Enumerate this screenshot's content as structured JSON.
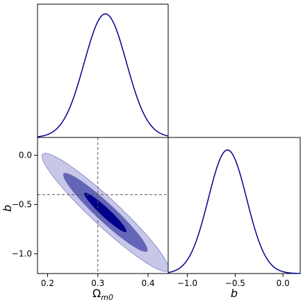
{
  "chart_data": {
    "type": "corner",
    "parameters": [
      {
        "label": "Ω",
        "subscript": "m0",
        "range": [
          0.18,
          0.44
        ],
        "ticks": [
          0.2,
          0.3,
          0.4
        ]
      },
      {
        "label": "b",
        "range": [
          -1.2,
          0.18
        ],
        "ticks": [
          -1.0,
          -0.5,
          0.0
        ]
      }
    ],
    "marginals": [
      {
        "parameter": 0,
        "mean": 0.315,
        "std": 0.042
      },
      {
        "parameter": 1,
        "mean": -0.58,
        "std": 0.2
      }
    ],
    "joint": {
      "center": [
        0.315,
        -0.58
      ],
      "std": [
        0.042,
        0.2
      ],
      "correlation": -0.95,
      "levels_sigma": [
        1,
        2,
        3
      ],
      "fill_colors": [
        "#00008b",
        "#6565b8",
        "#c7c7e8"
      ]
    },
    "reference_lines": {
      "x": 0.3,
      "y": -0.4
    },
    "tick_labels": {
      "x": [
        "0.2",
        "0.3",
        "0.4"
      ],
      "y": [
        "0.0",
        "−0.5",
        "−1.0"
      ],
      "x2": [
        "−1.0",
        "−0.5",
        "0.0"
      ]
    },
    "axis_labels": {
      "x": "Ω",
      "x_sub": "m0",
      "y": "b",
      "x2": "b"
    },
    "line_color": "#00008b",
    "guide_color": "#555555"
  }
}
